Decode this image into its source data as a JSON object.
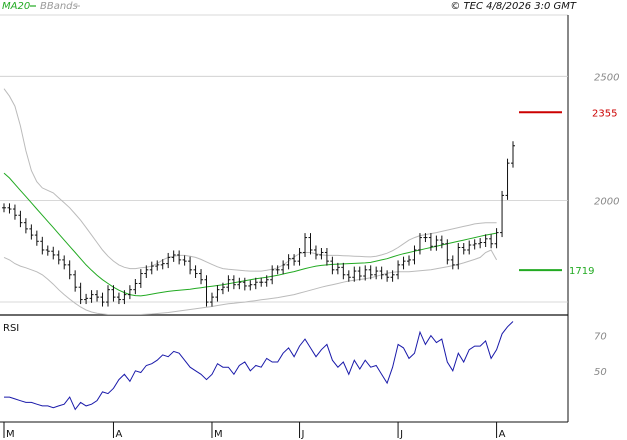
{
  "header": {
    "legend_ma": "MA20",
    "legend_bb": "BBands",
    "copyright": "© TEC 4/8/2026 3:0 GMT"
  },
  "colors": {
    "ma": "#22aa22",
    "bbands": "#bbbbbb",
    "price": "#111111",
    "rsi": "#1a1aaa",
    "resistance": "#cc0000",
    "support": "#22aa22",
    "grid": "#cccccc"
  },
  "chart_data": [
    {
      "type": "line",
      "panel": "price",
      "y_ticks": [
        "2500",
        "2000"
      ],
      "y_tick_values": [
        2500,
        2000
      ],
      "ylim": [
        1550,
        2735
      ],
      "x_month_labels": [
        "M",
        "A",
        "M",
        "J",
        "J",
        "A"
      ],
      "x_month_index": [
        0,
        20,
        38,
        54,
        72,
        90
      ],
      "levels": [
        {
          "label": "2355",
          "value": 2355,
          "color": "resistance"
        },
        {
          "label": "1719",
          "value": 1719,
          "color": "support"
        }
      ],
      "series": [
        {
          "name": "MA20",
          "color": "ma",
          "values": [
            2110,
            2090,
            2065,
            2040,
            2015,
            1990,
            1965,
            1940,
            1915,
            1890,
            1865,
            1840,
            1815,
            1790,
            1765,
            1740,
            1718,
            1698,
            1680,
            1665,
            1650,
            1638,
            1628,
            1620,
            1616,
            1615,
            1618,
            1622,
            1626,
            1630,
            1633,
            1636,
            1638,
            1640,
            1642,
            1645,
            1648,
            1651,
            1654,
            1657,
            1660,
            1664,
            1668,
            1672,
            1676,
            1680,
            1684,
            1687,
            1690,
            1694,
            1698,
            1703,
            1708,
            1713,
            1719,
            1725,
            1730,
            1735,
            1738,
            1740,
            1742,
            1743,
            1744,
            1745,
            1746,
            1747,
            1748,
            1750,
            1755,
            1760,
            1765,
            1772,
            1779,
            1785,
            1790,
            1795,
            1800,
            1805,
            1810,
            1815,
            1820,
            1825,
            1830,
            1835,
            1840,
            1845,
            1850,
            1855,
            1860,
            1864,
            1868
          ]
        },
        {
          "name": "BB-upper",
          "color": "bbands",
          "values": [
            2450,
            2420,
            2380,
            2300,
            2200,
            2120,
            2075,
            2050,
            2040,
            2030,
            2010,
            1990,
            1970,
            1945,
            1920,
            1890,
            1860,
            1830,
            1800,
            1775,
            1755,
            1740,
            1730,
            1725,
            1725,
            1728,
            1730,
            1735,
            1745,
            1760,
            1770,
            1775,
            1778,
            1778,
            1775,
            1770,
            1762,
            1752,
            1742,
            1732,
            1725,
            1722,
            1720,
            1718,
            1716,
            1715,
            1715,
            1715,
            1718,
            1722,
            1728,
            1740,
            1755,
            1772,
            1785,
            1790,
            1790,
            1785,
            1780,
            1778,
            1778,
            1778,
            1777,
            1776,
            1775,
            1774,
            1773,
            1772,
            1775,
            1780,
            1787,
            1797,
            1810,
            1825,
            1840,
            1850,
            1858,
            1862,
            1866,
            1870,
            1875,
            1880,
            1885,
            1890,
            1895,
            1900,
            1905,
            1908,
            1910,
            1910,
            1910
          ]
        },
        {
          "name": "BB-lower",
          "color": "bbands",
          "values": [
            1770,
            1760,
            1745,
            1735,
            1728,
            1720,
            1712,
            1700,
            1682,
            1662,
            1640,
            1620,
            1602,
            1585,
            1570,
            1558,
            1550,
            1545,
            1542,
            1540,
            1540,
            1540,
            1540,
            1540,
            1540,
            1540,
            1541,
            1542,
            1544,
            1546,
            1548,
            1551,
            1554,
            1557,
            1560,
            1563,
            1566,
            1569,
            1572,
            1576,
            1580,
            1583,
            1585,
            1588,
            1590,
            1593,
            1596,
            1599,
            1602,
            1605,
            1608,
            1612,
            1616,
            1620,
            1626,
            1632,
            1638,
            1644,
            1650,
            1655,
            1660,
            1665,
            1670,
            1675,
            1678,
            1681,
            1684,
            1688,
            1694,
            1700,
            1706,
            1710,
            1712,
            1712,
            1712,
            1714,
            1716,
            1718,
            1720,
            1724,
            1728,
            1732,
            1737,
            1742,
            1748,
            1755,
            1762,
            1770,
            1790,
            1800,
            1760
          ]
        },
        {
          "name": "Price",
          "color": "price",
          "values": [
            1970,
            1965,
            1940,
            1910,
            1885,
            1860,
            1835,
            1800,
            1795,
            1780,
            1760,
            1740,
            1700,
            1650,
            1600,
            1605,
            1620,
            1610,
            1590,
            1640,
            1610,
            1600,
            1620,
            1640,
            1665,
            1705,
            1720,
            1735,
            1740,
            1745,
            1770,
            1780,
            1760,
            1755,
            1720,
            1705,
            1680,
            1590,
            1610,
            1640,
            1650,
            1680,
            1660,
            1670,
            1655,
            1660,
            1670,
            1670,
            1680,
            1720,
            1720,
            1740,
            1765,
            1755,
            1790,
            1850,
            1800,
            1780,
            1790,
            1755,
            1720,
            1730,
            1700,
            1690,
            1715,
            1695,
            1720,
            1700,
            1715,
            1700,
            1690,
            1700,
            1740,
            1755,
            1760,
            1800,
            1850,
            1850,
            1815,
            1840,
            1825,
            1760,
            1740,
            1810,
            1800,
            1820,
            1825,
            1830,
            1845,
            1825,
            1870,
            2020,
            2150,
            2220
          ]
        }
      ]
    },
    {
      "type": "line",
      "panel": "rsi",
      "title": "RSI",
      "y_ticks": [
        "70",
        "50"
      ],
      "y_tick_values": [
        70,
        50
      ],
      "ylim": [
        22,
        80
      ],
      "series": [
        {
          "name": "RSI",
          "color": "rsi",
          "values": [
            35,
            35,
            34,
            33,
            32,
            32,
            31,
            30,
            30,
            29,
            30,
            31,
            35,
            28,
            32,
            30,
            31,
            33,
            38,
            37,
            40,
            45,
            48,
            44,
            50,
            49,
            53,
            54,
            56,
            59,
            58,
            61,
            60,
            56,
            52,
            50,
            48,
            45,
            48,
            54,
            52,
            52,
            48,
            53,
            55,
            50,
            53,
            52,
            57,
            55,
            55,
            60,
            63,
            58,
            64,
            68,
            63,
            58,
            62,
            65,
            56,
            52,
            55,
            48,
            56,
            51,
            56,
            52,
            53,
            48,
            43,
            52,
            65,
            63,
            57,
            60,
            72,
            65,
            70,
            66,
            68,
            55,
            50,
            60,
            55,
            62,
            64,
            64,
            67,
            57,
            62,
            71,
            75,
            78
          ]
        }
      ]
    }
  ]
}
